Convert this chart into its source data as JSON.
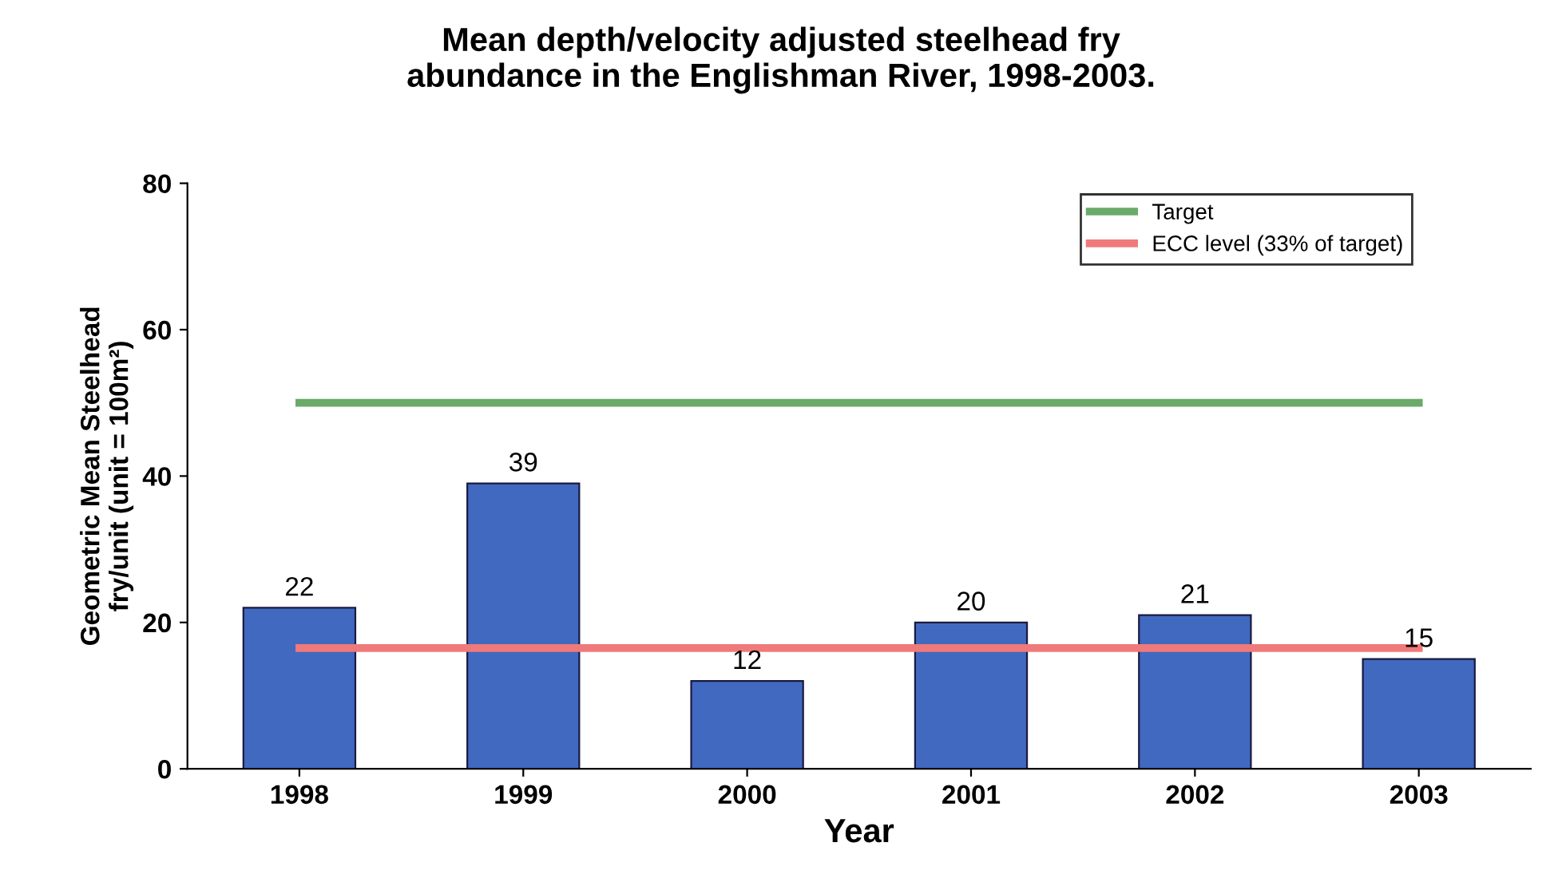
{
  "chart_data": {
    "type": "bar",
    "title": "Mean depth/velocity adjusted steelhead fry\nabundance in the Englishman River, 1998-2003.",
    "xlabel": "Year",
    "ylabel": "Geometric Mean Steelhead\nfry/unit (unit = 100m²)",
    "categories": [
      "1998",
      "1999",
      "2000",
      "2001",
      "2002",
      "2003"
    ],
    "series": [
      {
        "color": "#4169c0",
        "values": [
          22,
          39,
          12,
          20,
          21,
          15
        ],
        "value_labels": [
          "22",
          "39",
          "12",
          "20",
          "21",
          "15"
        ]
      },
      {
        "type": "line",
        "name": "Target",
        "color": "#6aaa6a",
        "values": [
          50,
          50,
          50,
          50,
          50,
          50
        ]
      },
      {
        "type": "line",
        "name": "ECC level (33% of target)",
        "color": "#f07a7a",
        "values": [
          16.5,
          16.5,
          16.5,
          16.5,
          16.5,
          16.5
        ]
      }
    ],
    "ylim": [
      0,
      80
    ],
    "yticks": [
      0,
      20,
      40,
      60,
      80
    ],
    "grid": false,
    "legend": "top right",
    "marker": "none",
    "line_style": "solid"
  }
}
